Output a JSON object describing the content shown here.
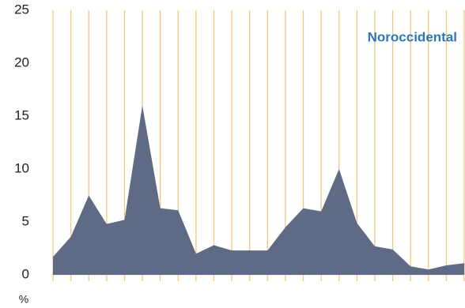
{
  "chart_data": {
    "type": "area",
    "title": "Noroccidental",
    "title_color": "#2e75b6",
    "y_label": "%",
    "categories": [
      null,
      null,
      null,
      null,
      null,
      null,
      null,
      null,
      null,
      null,
      null,
      null,
      null,
      null,
      null,
      null,
      null,
      null,
      null,
      null,
      null,
      null,
      null,
      null
    ],
    "values": [
      1.7,
      3.6,
      7.5,
      4.8,
      5.2,
      16,
      6.3,
      6.1,
      2.0,
      2.8,
      2.3,
      2.3,
      2.3,
      4.5,
      6.3,
      6.0,
      10,
      4.9,
      2.7,
      2.4,
      0.8,
      0.5,
      0.9,
      1.1
    ],
    "color": "#5f6b84",
    "ylim": [
      0,
      25
    ],
    "yticks": [
      0,
      5,
      10,
      15,
      20,
      25
    ],
    "grid": "x",
    "grid_color": "#f6c57f"
  }
}
